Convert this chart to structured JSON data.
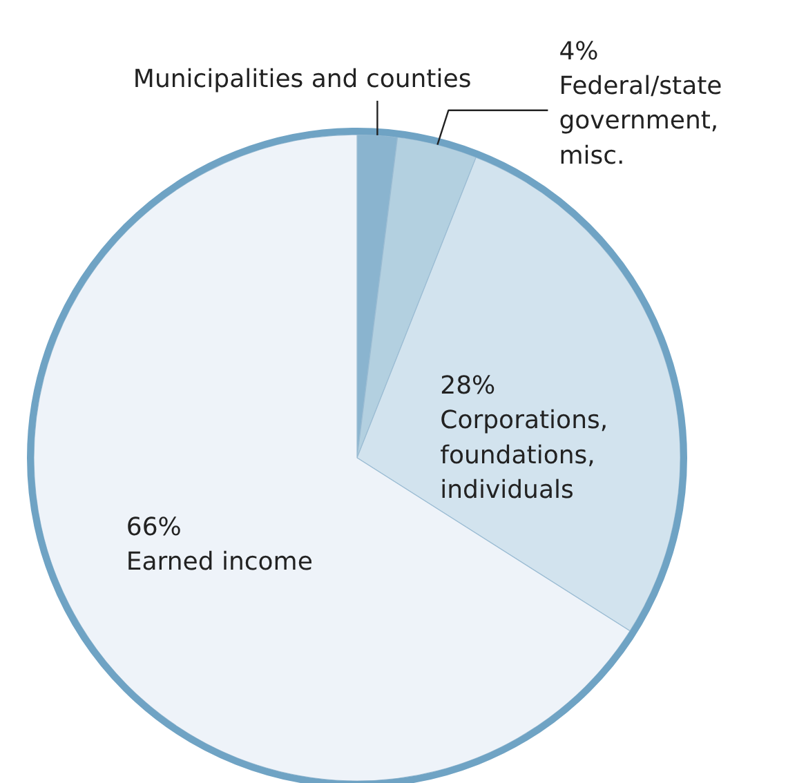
{
  "chart_data": {
    "type": "pie",
    "categories": [
      "Municipalities and counties",
      "Federal/state government, misc.",
      "Corporations, foundations, individuals",
      "Earned income"
    ],
    "values": [
      2,
      4,
      28,
      66
    ],
    "value_labels": [
      null,
      "4%",
      "28%",
      "66%"
    ],
    "colors": [
      "#8ab4cf",
      "#b3d0e0",
      "#d2e3ee",
      "#eef3f9"
    ]
  }
}
